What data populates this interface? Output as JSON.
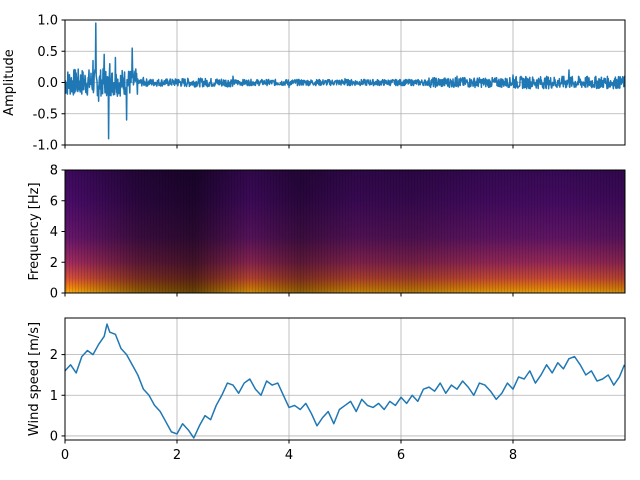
{
  "chart_data": [
    {
      "type": "line",
      "panel": "waveform",
      "xlabel": "",
      "ylabel": "Amplitude",
      "xlim": [
        0,
        10
      ],
      "ylim": [
        -1.0,
        1.0
      ],
      "grid": true,
      "color": "#1f77b4",
      "yticks": [
        "-1.0",
        "-0.5",
        "0.0",
        "0.5",
        "1.0"
      ],
      "ytick_values": [
        -1.0,
        -0.5,
        0.0,
        0.5,
        1.0
      ],
      "xtick_values": [
        0,
        2,
        4,
        6,
        8
      ],
      "x": [
        0.0,
        0.2,
        0.4,
        0.5,
        0.55,
        0.6,
        0.7,
        0.78,
        0.8,
        0.9,
        1.0,
        1.1,
        1.2,
        1.4,
        2.0,
        3.0,
        4.0,
        5.0,
        6.0,
        7.0,
        8.0,
        9.0,
        9.99
      ],
      "y": [
        -0.05,
        0.15,
        -0.2,
        0.35,
        0.95,
        -0.3,
        0.45,
        -0.9,
        0.3,
        0.4,
        0.1,
        -0.6,
        0.55,
        0.08,
        0.05,
        0.1,
        -0.08,
        0.06,
        -0.05,
        0.1,
        0.12,
        0.2,
        0.1
      ]
    },
    {
      "type": "heatmap",
      "panel": "spectrogram",
      "xlabel": "",
      "ylabel": "Frequency [Hz]",
      "xlim": [
        0,
        10
      ],
      "ylim": [
        0,
        8
      ],
      "colormap": "inferno",
      "yticks": [
        "0",
        "2",
        "4",
        "6",
        "8"
      ],
      "ytick_values": [
        0,
        2,
        4,
        6,
        8
      ],
      "xtick_values": [
        0,
        2,
        4,
        6,
        8
      ]
    },
    {
      "type": "line",
      "panel": "wind",
      "xlabel": "",
      "ylabel": "Wind speed [m/s]",
      "xlim": [
        0,
        10
      ],
      "ylim": [
        -0.1,
        2.9
      ],
      "grid": true,
      "color": "#1f77b4",
      "yticks": [
        "0",
        "1",
        "2"
      ],
      "ytick_values": [
        0,
        1,
        2
      ],
      "xticks": [
        "0",
        "2",
        "4",
        "6",
        "8"
      ],
      "xtick_values": [
        0,
        2,
        4,
        6,
        8
      ],
      "x": [
        0.0,
        0.1,
        0.2,
        0.3,
        0.4,
        0.5,
        0.6,
        0.7,
        0.75,
        0.8,
        0.9,
        1.0,
        1.1,
        1.2,
        1.3,
        1.4,
        1.5,
        1.6,
        1.7,
        1.8,
        1.9,
        2.0,
        2.1,
        2.2,
        2.3,
        2.4,
        2.5,
        2.6,
        2.7,
        2.8,
        2.9,
        3.0,
        3.1,
        3.2,
        3.3,
        3.4,
        3.5,
        3.6,
        3.7,
        3.8,
        3.9,
        4.0,
        4.1,
        4.2,
        4.3,
        4.4,
        4.5,
        4.6,
        4.7,
        4.8,
        4.9,
        5.0,
        5.1,
        5.2,
        5.3,
        5.4,
        5.5,
        5.6,
        5.7,
        5.8,
        5.9,
        6.0,
        6.1,
        6.2,
        6.3,
        6.4,
        6.5,
        6.6,
        6.7,
        6.8,
        6.9,
        7.0,
        7.1,
        7.2,
        7.3,
        7.4,
        7.5,
        7.6,
        7.7,
        7.8,
        7.9,
        8.0,
        8.1,
        8.2,
        8.3,
        8.4,
        8.5,
        8.6,
        8.7,
        8.8,
        8.9,
        9.0,
        9.1,
        9.2,
        9.3,
        9.4,
        9.5,
        9.6,
        9.7,
        9.8,
        9.9,
        9.99
      ],
      "y": [
        1.6,
        1.75,
        1.55,
        1.95,
        2.1,
        2.0,
        2.25,
        2.45,
        2.75,
        2.55,
        2.5,
        2.15,
        2.0,
        1.75,
        1.5,
        1.15,
        1.0,
        0.75,
        0.6,
        0.35,
        0.1,
        0.05,
        0.3,
        0.15,
        -0.05,
        0.25,
        0.5,
        0.4,
        0.75,
        1.0,
        1.3,
        1.25,
        1.05,
        1.3,
        1.4,
        1.15,
        1.0,
        1.35,
        1.25,
        1.3,
        1.0,
        0.7,
        0.75,
        0.65,
        0.8,
        0.55,
        0.25,
        0.45,
        0.6,
        0.3,
        0.65,
        0.75,
        0.85,
        0.6,
        0.9,
        0.75,
        0.7,
        0.8,
        0.65,
        0.85,
        0.75,
        0.95,
        0.8,
        1.0,
        0.85,
        1.15,
        1.2,
        1.1,
        1.3,
        1.05,
        1.25,
        1.15,
        1.35,
        1.2,
        1.0,
        1.3,
        1.25,
        1.1,
        0.9,
        1.05,
        1.3,
        1.15,
        1.45,
        1.4,
        1.6,
        1.3,
        1.5,
        1.75,
        1.55,
        1.8,
        1.65,
        1.9,
        1.95,
        1.75,
        1.5,
        1.6,
        1.35,
        1.4,
        1.5,
        1.25,
        1.45,
        1.75
      ]
    }
  ]
}
